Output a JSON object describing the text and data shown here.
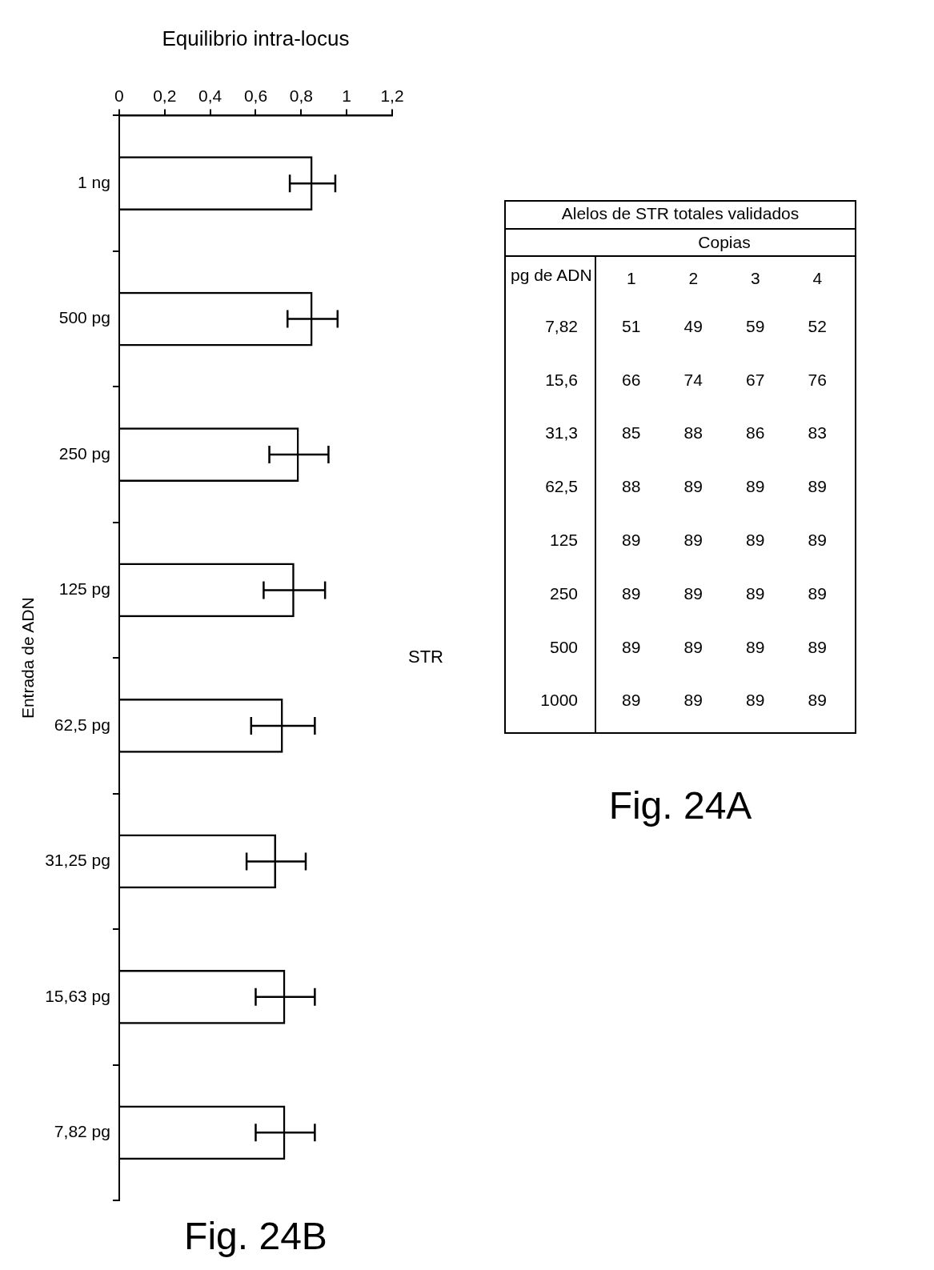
{
  "chart_data": [
    {
      "type": "heatmap",
      "title": "Alelos de STR totales validados",
      "xlabel": "Copias",
      "ylabel": "pg de ADN",
      "categories": [
        "1",
        "2",
        "3",
        "4"
      ],
      "y_categories": [
        "7,82",
        "15,6",
        "31,3",
        "62,5",
        "125",
        "250",
        "500",
        "1000"
      ],
      "cells": [
        [
          51,
          49,
          59,
          52
        ],
        [
          66,
          74,
          67,
          76
        ],
        [
          85,
          88,
          86,
          83
        ],
        [
          88,
          89,
          89,
          89
        ],
        [
          89,
          89,
          89,
          89
        ],
        [
          89,
          89,
          89,
          89
        ],
        [
          89,
          89,
          89,
          89
        ],
        [
          89,
          89,
          89,
          89
        ]
      ],
      "color": "#ffffff",
      "data_labels": true,
      "annotations": [
        "Fig. 24A"
      ]
    },
    {
      "type": "bar",
      "orientation": "horizontal",
      "title": "STR",
      "xlabel": "Equilibrio intra-locus",
      "ylabel": "Entrada de ADN",
      "categories": [
        "1 ng",
        "500 pg",
        "250 pg",
        "125 pg",
        "62,5 pg",
        "31,25 pg",
        "15,63 pg",
        "7,82 pg"
      ],
      "values": [
        0.85,
        0.85,
        0.79,
        0.77,
        0.72,
        0.69,
        0.73,
        0.73
      ],
      "errors": [
        0.1,
        0.11,
        0.13,
        0.135,
        0.14,
        0.13,
        0.13,
        0.13
      ],
      "color": "#000000",
      "xlim": [
        0,
        1.2
      ],
      "xticks": [
        0,
        {
          "value": 0.2,
          "label": "0,2"
        },
        {
          "value": 0.4,
          "label": "0,4"
        },
        {
          "value": 0.6,
          "label": "0,6"
        },
        {
          "value": 0.8,
          "label": "0,8"
        },
        1,
        {
          "value": 1.2,
          "label": "1,2"
        }
      ],
      "annotations": [
        "Fig. 24B"
      ]
    }
  ]
}
